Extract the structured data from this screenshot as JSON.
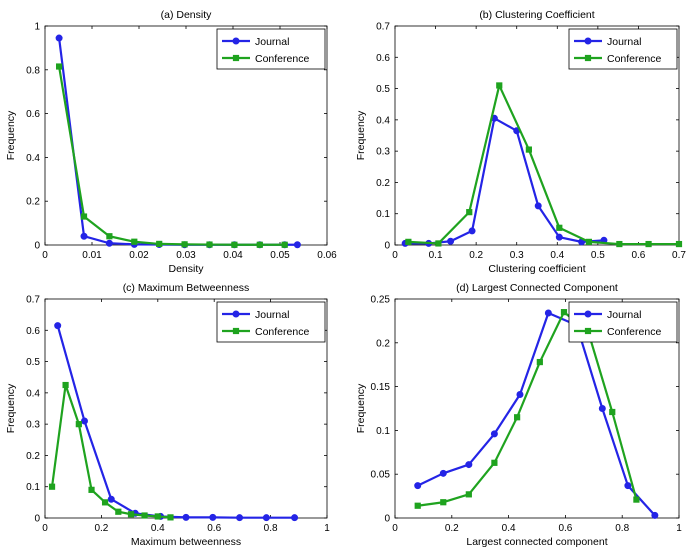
{
  "chart_data": [
    {
      "type": "line",
      "title": "(a) Density",
      "xlabel": "Density",
      "ylabel": "Frequency",
      "xlim": [
        0,
        0.06
      ],
      "ylim": [
        0,
        1
      ],
      "xticks": [
        0,
        0.01,
        0.02,
        0.03,
        0.04,
        0.05,
        0.06
      ],
      "yticks": [
        0,
        0.2,
        0.4,
        0.6,
        0.8,
        1
      ],
      "xtick_labels": [
        "0",
        "0.01",
        "0.02",
        "0.03",
        "0.04",
        "0.05",
        "0.06"
      ],
      "ytick_labels": [
        "0",
        "0.2",
        "0.4",
        "0.6",
        "0.8",
        "1"
      ],
      "legend": "top-right",
      "grid": false,
      "series": [
        {
          "name": "Journal",
          "color": "#2424e6",
          "marker": "circle",
          "x": [
            0.003,
            0.0083,
            0.0137,
            0.019,
            0.0243,
            0.0297,
            0.035,
            0.0403,
            0.0457,
            0.051,
            0.0537
          ],
          "y": [
            0.945,
            0.04,
            0.008,
            0.003,
            0.002,
            0.001,
            0.001,
            0.001,
            0.001,
            0.001,
            0.001
          ]
        },
        {
          "name": "Conference",
          "color": "#1fa31f",
          "marker": "square",
          "x": [
            0.003,
            0.0083,
            0.0137,
            0.019,
            0.0243,
            0.0297,
            0.035,
            0.0403,
            0.0457,
            0.051
          ],
          "y": [
            0.815,
            0.13,
            0.04,
            0.015,
            0.005,
            0.003,
            0.002,
            0.001,
            0.001,
            0.001
          ]
        }
      ]
    },
    {
      "type": "line",
      "title": "(b) Clustering Coefficient",
      "xlabel": "Clustering coefficient",
      "ylabel": "Frequency",
      "xlim": [
        0,
        0.7
      ],
      "ylim": [
        0,
        0.7
      ],
      "xticks": [
        0,
        0.1,
        0.2,
        0.3,
        0.4,
        0.5,
        0.6,
        0.7
      ],
      "yticks": [
        0,
        0.1,
        0.2,
        0.3,
        0.4,
        0.5,
        0.6,
        0.7
      ],
      "xtick_labels": [
        "0",
        "0.1",
        "0.2",
        "0.3",
        "0.4",
        "0.5",
        "0.6",
        "0.7"
      ],
      "ytick_labels": [
        "0",
        "0.1",
        "0.2",
        "0.3",
        "0.4",
        "0.5",
        "0.6",
        "0.7"
      ],
      "legend": "top-right",
      "grid": false,
      "series": [
        {
          "name": "Journal",
          "color": "#2424e6",
          "marker": "circle",
          "x": [
            0.025,
            0.083,
            0.137,
            0.19,
            0.245,
            0.3,
            0.353,
            0.405,
            0.46,
            0.515
          ],
          "y": [
            0.005,
            0.005,
            0.012,
            0.045,
            0.405,
            0.365,
            0.125,
            0.025,
            0.01,
            0.015
          ]
        },
        {
          "name": "Conference",
          "color": "#1fa31f",
          "marker": "square",
          "x": [
            0.033,
            0.107,
            0.183,
            0.257,
            0.33,
            0.405,
            0.478,
            0.553,
            0.625,
            0.7
          ],
          "y": [
            0.01,
            0.005,
            0.105,
            0.51,
            0.305,
            0.055,
            0.01,
            0.003,
            0.003,
            0.003
          ]
        }
      ]
    },
    {
      "type": "line",
      "title": "(c) Maximum Betweenness",
      "xlabel": "Maximum betweenness",
      "ylabel": "Frequency",
      "xlim": [
        0,
        1
      ],
      "ylim": [
        0,
        0.7
      ],
      "xticks": [
        0,
        0.2,
        0.4,
        0.6,
        0.8,
        1
      ],
      "yticks": [
        0,
        0.1,
        0.2,
        0.3,
        0.4,
        0.5,
        0.6,
        0.7
      ],
      "xtick_labels": [
        "0",
        "0.2",
        "0.4",
        "0.6",
        "0.8",
        "1"
      ],
      "ytick_labels": [
        "0",
        "0.1",
        "0.2",
        "0.3",
        "0.4",
        "0.5",
        "0.6",
        "0.7"
      ],
      "legend": "top-right",
      "grid": false,
      "series": [
        {
          "name": "Journal",
          "color": "#2424e6",
          "marker": "circle",
          "x": [
            0.045,
            0.14,
            0.235,
            0.32,
            0.41,
            0.5,
            0.595,
            0.69,
            0.785,
            0.885
          ],
          "y": [
            0.615,
            0.31,
            0.06,
            0.015,
            0.005,
            0.002,
            0.002,
            0.001,
            0.001,
            0.001
          ]
        },
        {
          "name": "Conference",
          "color": "#1fa31f",
          "marker": "square",
          "x": [
            0.025,
            0.073,
            0.12,
            0.165,
            0.213,
            0.26,
            0.305,
            0.353,
            0.4,
            0.445
          ],
          "y": [
            0.1,
            0.425,
            0.3,
            0.09,
            0.05,
            0.02,
            0.012,
            0.008,
            0.005,
            0.002
          ]
        }
      ]
    },
    {
      "type": "line",
      "title": "(d) Largest Connected Component",
      "xlabel": "Largest connected component",
      "ylabel": "Frequency",
      "xlim": [
        0,
        1
      ],
      "ylim": [
        0,
        0.25
      ],
      "xticks": [
        0,
        0.2,
        0.4,
        0.6,
        0.8,
        1
      ],
      "yticks": [
        0,
        0.05,
        0.1,
        0.15,
        0.2,
        0.25
      ],
      "xtick_labels": [
        "0",
        "0.2",
        "0.4",
        "0.6",
        "0.8",
        "1"
      ],
      "ytick_labels": [
        "0",
        "0.05",
        "0.1",
        "0.15",
        "0.2",
        "0.25"
      ],
      "legend": "top-right",
      "grid": false,
      "series": [
        {
          "name": "Journal",
          "color": "#2424e6",
          "marker": "circle",
          "x": [
            0.08,
            0.17,
            0.26,
            0.35,
            0.44,
            0.54,
            0.64,
            0.73,
            0.82,
            0.915
          ],
          "y": [
            0.037,
            0.051,
            0.061,
            0.096,
            0.141,
            0.234,
            0.22,
            0.125,
            0.037,
            0.003
          ]
        },
        {
          "name": "Conference",
          "color": "#1fa31f",
          "marker": "square",
          "x": [
            0.08,
            0.17,
            0.26,
            0.35,
            0.43,
            0.51,
            0.595,
            0.68,
            0.765,
            0.85
          ],
          "y": [
            0.014,
            0.018,
            0.027,
            0.063,
            0.115,
            0.178,
            0.235,
            0.213,
            0.121,
            0.021
          ]
        }
      ]
    }
  ]
}
